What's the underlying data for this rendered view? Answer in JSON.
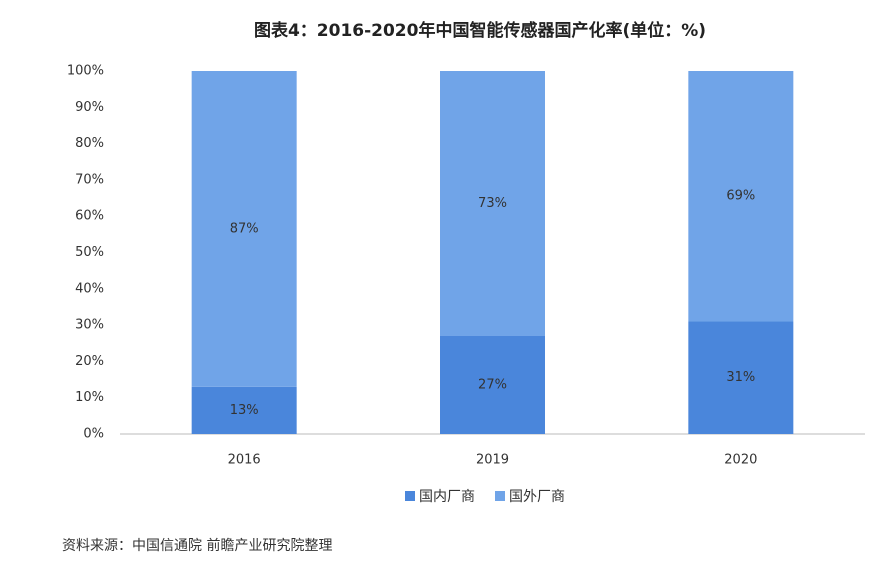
{
  "chart_data": {
    "type": "stacked_bar",
    "title": "图表4：2016-2020年中国智能传感器国产化率(单位：%)",
    "categories": [
      "2016",
      "2019",
      "2020"
    ],
    "series": [
      {
        "name": "国内厂商",
        "color": "#4a86db",
        "values": [
          13,
          27,
          31
        ],
        "value_labels": [
          "13%",
          "27%",
          "31%"
        ]
      },
      {
        "name": "国外厂商",
        "color": "#70a4e8",
        "values": [
          87,
          73,
          69
        ],
        "value_labels": [
          "87%",
          "73%",
          "69%"
        ]
      }
    ],
    "ylim": [
      0,
      100
    ],
    "yticks": [
      {
        "value": 0,
        "label": "0%"
      },
      {
        "value": 10,
        "label": "10%"
      },
      {
        "value": 20,
        "label": "20%"
      },
      {
        "value": 30,
        "label": "30%"
      },
      {
        "value": 40,
        "label": "40%"
      },
      {
        "value": 50,
        "label": "50%"
      },
      {
        "value": 60,
        "label": "60%"
      },
      {
        "value": 70,
        "label": "70%"
      },
      {
        "value": 80,
        "label": "80%"
      },
      {
        "value": 90,
        "label": "90%"
      },
      {
        "value": 100,
        "label": "100%"
      }
    ],
    "grid": false,
    "legend": "bottom",
    "source": "资料来源：中国信通院 前瞻产业研究院整理"
  }
}
